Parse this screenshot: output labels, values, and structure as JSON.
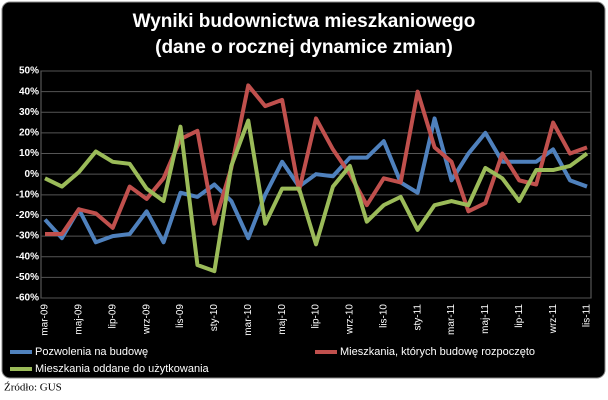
{
  "chart_data": {
    "type": "line",
    "title": "Wyniki budownictwa mieszkaniowego",
    "subtitle": "(dane o rocznej dynamice zmian)",
    "source": "Źródło: GUS",
    "categories": [
      "mar-09",
      null,
      "maj-09",
      null,
      "lip-09",
      null,
      "wrz-09",
      null,
      "lis-09",
      null,
      "sty-10",
      null,
      "mar-10",
      null,
      "maj-10",
      null,
      "lip-10",
      null,
      "wrz-10",
      null,
      "lis-10",
      null,
      "sty-11",
      null,
      "mar-11",
      null,
      "maj-11",
      null,
      "lip-11",
      null,
      "wrz-11",
      null,
      "lis-11"
    ],
    "series": [
      {
        "name": "Pozwolenia na budowę",
        "color": "#4f81bd",
        "values": [
          -22,
          -31,
          -17,
          -33,
          -30,
          -29,
          -18,
          -33,
          -9,
          -11,
          -5,
          -13,
          -31,
          -10,
          6,
          -6,
          0,
          -1,
          8,
          8,
          16,
          -4,
          -9,
          27,
          -3,
          10,
          20,
          6,
          6,
          6,
          12,
          -3,
          -6
        ]
      },
      {
        "name": "Mieszkania, których budowę rozpoczęto",
        "color": "#c0504d",
        "values": [
          -29,
          -29,
          -17,
          -19,
          -26,
          -6,
          -12,
          -2,
          17,
          21,
          -24,
          3,
          43,
          33,
          36,
          -8,
          27,
          12,
          0,
          -15,
          -2,
          -4,
          40,
          13,
          6,
          -18,
          -14,
          10,
          -3,
          -5,
          25,
          10,
          13
        ]
      },
      {
        "name": "Mieszkania oddane do użytkowania",
        "color": "#9bbb59",
        "values": [
          -2,
          -6,
          1,
          11,
          6,
          5,
          -7,
          -13,
          23,
          -44,
          -47,
          4,
          26,
          -24,
          -7,
          -7,
          -34,
          -6,
          4,
          -23,
          -15,
          -11,
          -27,
          -15,
          -13,
          -15,
          3,
          -2,
          -13,
          2,
          2,
          4,
          10
        ]
      }
    ],
    "ylim": [
      -60,
      50
    ],
    "yticks": [
      {
        "value": -60,
        "label": "-60%"
      },
      {
        "value": -50,
        "label": "-50%"
      },
      {
        "value": -40,
        "label": "-40%"
      },
      {
        "value": -30,
        "label": "-30%"
      },
      {
        "value": -20,
        "label": "-20%"
      },
      {
        "value": -10,
        "label": "-10%"
      },
      {
        "value": 0,
        "label": "0%"
      },
      {
        "value": 10,
        "label": "10%"
      },
      {
        "value": 20,
        "label": "20%"
      },
      {
        "value": 30,
        "label": "30%"
      },
      {
        "value": 40,
        "label": "40%"
      },
      {
        "value": 50,
        "label": "50%"
      }
    ],
    "grid": true
  }
}
